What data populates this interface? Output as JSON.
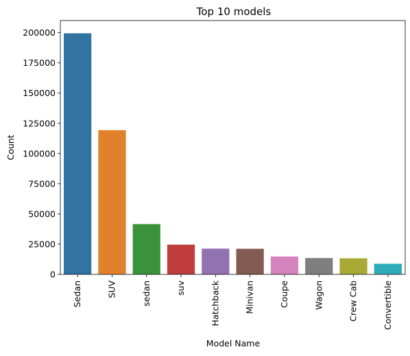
{
  "chart_data": {
    "type": "bar",
    "title": "Top 10 models",
    "xlabel": "Model Name",
    "ylabel": "Count",
    "categories": [
      "Sedan",
      "SUV",
      "sedan",
      "suv",
      "Hatchback",
      "Minivan",
      "Coupe",
      "Wagon",
      "Crew Cab",
      "Convertible"
    ],
    "values": [
      199500,
      119300,
      41600,
      24600,
      21300,
      21200,
      14800,
      13500,
      13300,
      8800
    ],
    "colors": [
      "#3274a1",
      "#e1812c",
      "#3a923a",
      "#c03d3e",
      "#9372b2",
      "#845b53",
      "#d684bd",
      "#7f7f7f",
      "#a9aa35",
      "#2eabb8"
    ],
    "ylim": [
      0,
      210000
    ],
    "yticks": [
      0,
      25000,
      50000,
      75000,
      100000,
      125000,
      150000,
      175000,
      200000
    ],
    "grid": false,
    "legend": "none"
  }
}
